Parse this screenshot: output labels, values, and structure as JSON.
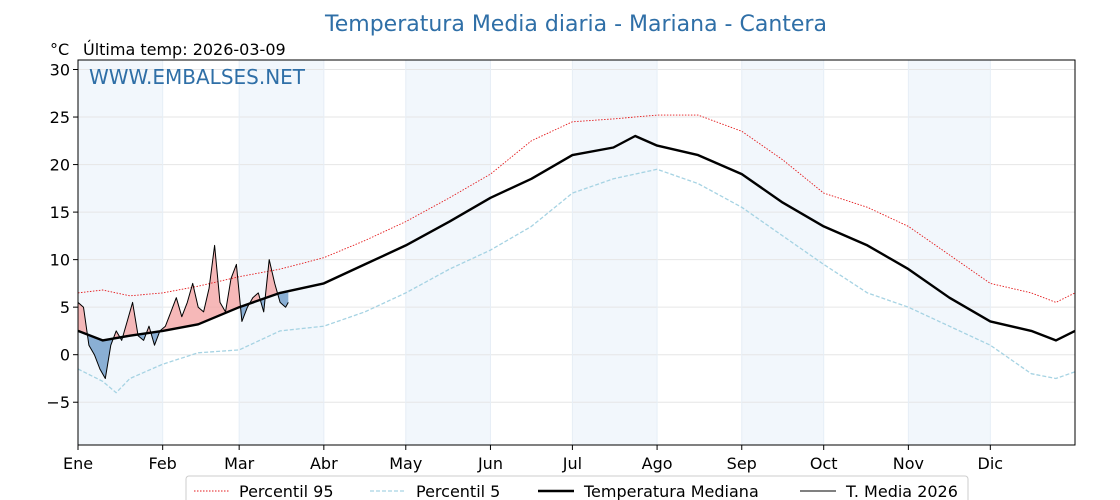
{
  "chart_data": {
    "type": "line",
    "title": "Temperatura Media diaria - Mariana - Cantera",
    "unit_label": "°C",
    "last_temp_label": "Última temp: 2026-03-09",
    "watermark": "WWW.EMBALSES.NET",
    "ylim": [
      -9.5,
      31
    ],
    "xlim": [
      1,
      366
    ],
    "yticks": [
      {
        "value": 30,
        "label": "30"
      },
      {
        "value": 25,
        "label": "25"
      },
      {
        "value": 20,
        "label": "20"
      },
      {
        "value": 15,
        "label": "15"
      },
      {
        "value": 10,
        "label": "10"
      },
      {
        "value": 5,
        "label": "5"
      },
      {
        "value": 0,
        "label": "0"
      },
      {
        "value": -5,
        "label": "−5"
      }
    ],
    "months": [
      {
        "label": "Ene",
        "start": 1,
        "end": 32
      },
      {
        "label": "Feb",
        "start": 32,
        "end": 60
      },
      {
        "label": "Mar",
        "start": 60,
        "end": 91
      },
      {
        "label": "Abr",
        "start": 91,
        "end": 121
      },
      {
        "label": "May",
        "start": 121,
        "end": 152
      },
      {
        "label": "Jun",
        "start": 152,
        "end": 182
      },
      {
        "label": "Jul",
        "start": 182,
        "end": 213
      },
      {
        "label": "Ago",
        "start": 213,
        "end": 244
      },
      {
        "label": "Sep",
        "start": 244,
        "end": 274
      },
      {
        "label": "Oct",
        "start": 274,
        "end": 305
      },
      {
        "label": "Nov",
        "start": 305,
        "end": 335
      },
      {
        "label": "Dic",
        "start": 335,
        "end": 366
      }
    ],
    "grid": true,
    "legend_position": "bottom-center",
    "series": [
      {
        "name": "Percentil 95",
        "color": "#e41a1c",
        "style": "dotted",
        "points": [
          [
            1,
            6.5
          ],
          [
            10,
            6.8
          ],
          [
            20,
            6.2
          ],
          [
            32,
            6.5
          ],
          [
            45,
            7.2
          ],
          [
            60,
            8.2
          ],
          [
            75,
            9.0
          ],
          [
            91,
            10.2
          ],
          [
            106,
            12.0
          ],
          [
            121,
            14.0
          ],
          [
            137,
            16.5
          ],
          [
            152,
            19.0
          ],
          [
            167,
            22.5
          ],
          [
            182,
            24.5
          ],
          [
            197,
            24.8
          ],
          [
            213,
            25.2
          ],
          [
            228,
            25.2
          ],
          [
            244,
            23.5
          ],
          [
            259,
            20.5
          ],
          [
            274,
            17.0
          ],
          [
            290,
            15.5
          ],
          [
            305,
            13.5
          ],
          [
            320,
            10.5
          ],
          [
            335,
            7.5
          ],
          [
            350,
            6.5
          ],
          [
            359,
            5.5
          ],
          [
            366,
            6.5
          ]
        ]
      },
      {
        "name": "Percentil 5",
        "color": "#a6d3e3",
        "style": "dashed",
        "points": [
          [
            1,
            -1.5
          ],
          [
            10,
            -2.8
          ],
          [
            15,
            -4.0
          ],
          [
            20,
            -2.5
          ],
          [
            32,
            -1.0
          ],
          [
            45,
            0.2
          ],
          [
            60,
            0.5
          ],
          [
            75,
            2.5
          ],
          [
            91,
            3.0
          ],
          [
            106,
            4.5
          ],
          [
            121,
            6.5
          ],
          [
            137,
            9.0
          ],
          [
            152,
            11.0
          ],
          [
            167,
            13.5
          ],
          [
            182,
            17.0
          ],
          [
            197,
            18.5
          ],
          [
            213,
            19.5
          ],
          [
            228,
            18.0
          ],
          [
            244,
            15.5
          ],
          [
            259,
            12.5
          ],
          [
            274,
            9.5
          ],
          [
            290,
            6.5
          ],
          [
            305,
            5.0
          ],
          [
            320,
            3.0
          ],
          [
            335,
            1.0
          ],
          [
            345,
            -1.0
          ],
          [
            350,
            -2.0
          ],
          [
            359,
            -2.5
          ],
          [
            366,
            -1.8
          ]
        ]
      },
      {
        "name": "Temperatura Mediana",
        "color": "#000000",
        "style": "solid-thick",
        "points": [
          [
            1,
            2.5
          ],
          [
            10,
            1.5
          ],
          [
            20,
            2.0
          ],
          [
            32,
            2.5
          ],
          [
            45,
            3.2
          ],
          [
            60,
            5.0
          ],
          [
            75,
            6.5
          ],
          [
            91,
            7.5
          ],
          [
            106,
            9.5
          ],
          [
            121,
            11.5
          ],
          [
            137,
            14.0
          ],
          [
            152,
            16.5
          ],
          [
            167,
            18.5
          ],
          [
            182,
            21.0
          ],
          [
            197,
            21.8
          ],
          [
            205,
            23.0
          ],
          [
            213,
            22.0
          ],
          [
            228,
            21.0
          ],
          [
            244,
            19.0
          ],
          [
            259,
            16.0
          ],
          [
            274,
            13.5
          ],
          [
            290,
            11.5
          ],
          [
            305,
            9.0
          ],
          [
            320,
            6.0
          ],
          [
            335,
            3.5
          ],
          [
            350,
            2.5
          ],
          [
            359,
            1.5
          ],
          [
            366,
            2.5
          ]
        ]
      },
      {
        "name": "T. Media 2026",
        "color": "#000000",
        "style": "solid-thin",
        "points": [
          [
            1,
            5.5
          ],
          [
            3,
            5.0
          ],
          [
            5,
            1.0
          ],
          [
            7,
            0.0
          ],
          [
            9,
            -1.5
          ],
          [
            11,
            -2.5
          ],
          [
            13,
            1.0
          ],
          [
            15,
            2.5
          ],
          [
            17,
            1.5
          ],
          [
            19,
            3.5
          ],
          [
            21,
            5.5
          ],
          [
            23,
            2.0
          ],
          [
            25,
            1.5
          ],
          [
            27,
            3.0
          ],
          [
            29,
            1.0
          ],
          [
            31,
            2.5
          ],
          [
            33,
            3.0
          ],
          [
            35,
            4.5
          ],
          [
            37,
            6.0
          ],
          [
            39,
            4.0
          ],
          [
            41,
            5.5
          ],
          [
            43,
            7.5
          ],
          [
            45,
            5.0
          ],
          [
            47,
            4.5
          ],
          [
            49,
            7.0
          ],
          [
            51,
            11.5
          ],
          [
            53,
            5.5
          ],
          [
            55,
            4.5
          ],
          [
            57,
            8.0
          ],
          [
            59,
            9.5
          ],
          [
            61,
            3.5
          ],
          [
            63,
            5.0
          ],
          [
            65,
            6.0
          ],
          [
            67,
            6.5
          ],
          [
            69,
            4.5
          ],
          [
            71,
            10.0
          ],
          [
            73,
            7.5
          ],
          [
            75,
            5.5
          ],
          [
            77,
            5.0
          ],
          [
            78,
            5.5
          ]
        ]
      }
    ]
  }
}
